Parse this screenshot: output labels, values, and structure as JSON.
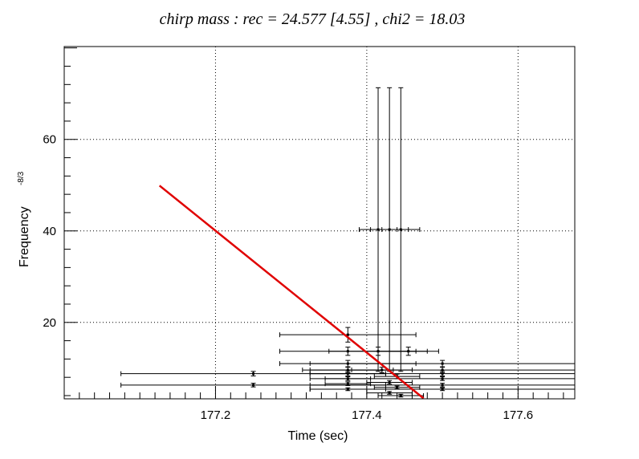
{
  "chart_data": {
    "type": "scatter",
    "title": "chirp mass : rec = 24.577 [4.55] , chi2 = 18.03",
    "xlabel": "Time (sec)",
    "ylabel": "Frequency",
    "ylabel_exponent": "-8/3",
    "xlim": [
      177.0,
      177.675
    ],
    "ylim": [
      3.3,
      80.3
    ],
    "x_ticks": [
      177.2,
      177.4,
      177.6
    ],
    "x_tick_labels": [
      "177.2",
      "177.4",
      "177.6"
    ],
    "y_ticks": [
      20,
      40,
      60
    ],
    "y_tick_labels": [
      "20",
      "40",
      "60"
    ],
    "grid": true,
    "fit_line": {
      "color": "#e00000",
      "x": [
        177.126,
        177.475
      ],
      "y": [
        49.9,
        3.4
      ]
    },
    "error_points": [
      {
        "x": 177.415,
        "y": 40.3,
        "xerr": 0.025,
        "yerr": 31.0
      },
      {
        "x": 177.43,
        "y": 40.3,
        "xerr": 0.025,
        "yerr": 31.0
      },
      {
        "x": 177.445,
        "y": 40.3,
        "xerr": 0.025,
        "yerr": 31.0
      },
      {
        "x": 177.375,
        "y": 17.3,
        "xerr": 0.09,
        "yerr": 1.6
      },
      {
        "x": 177.375,
        "y": 13.7,
        "xerr": 0.09,
        "yerr": 0.9
      },
      {
        "x": 177.415,
        "y": 13.7,
        "xerr": 0.065,
        "yerr": 0.9
      },
      {
        "x": 177.455,
        "y": 13.7,
        "xerr": 0.04,
        "yerr": 0.9
      },
      {
        "x": 177.375,
        "y": 11.0,
        "xerr": 0.09,
        "yerr": 0.7
      },
      {
        "x": 177.5,
        "y": 11.0,
        "xerr": 0.175,
        "yerr": 0.7
      },
      {
        "x": 177.375,
        "y": 9.6,
        "xerr": 0.06,
        "yerr": 0.6
      },
      {
        "x": 177.42,
        "y": 9.6,
        "xerr": 0.04,
        "yerr": 0.6
      },
      {
        "x": 177.5,
        "y": 9.6,
        "xerr": 0.175,
        "yerr": 0.6
      },
      {
        "x": 177.25,
        "y": 8.8,
        "xerr": 0.175,
        "yerr": 0.5
      },
      {
        "x": 177.375,
        "y": 8.8,
        "xerr": 0.05,
        "yerr": 0.5
      },
      {
        "x": 177.5,
        "y": 8.8,
        "xerr": 0.175,
        "yerr": 0.5
      },
      {
        "x": 177.44,
        "y": 8.2,
        "xerr": 0.03,
        "yerr": 0.5
      },
      {
        "x": 177.375,
        "y": 7.7,
        "xerr": 0.03,
        "yerr": 0.4
      },
      {
        "x": 177.5,
        "y": 7.7,
        "xerr": 0.175,
        "yerr": 0.4
      },
      {
        "x": 177.43,
        "y": 6.9,
        "xerr": 0.03,
        "yerr": 0.4
      },
      {
        "x": 177.375,
        "y": 6.6,
        "xerr": 0.03,
        "yerr": 0.4
      },
      {
        "x": 177.25,
        "y": 6.3,
        "xerr": 0.175,
        "yerr": 0.4
      },
      {
        "x": 177.5,
        "y": 6.3,
        "xerr": 0.175,
        "yerr": 0.4
      },
      {
        "x": 177.44,
        "y": 5.8,
        "xerr": 0.03,
        "yerr": 0.3
      },
      {
        "x": 177.375,
        "y": 5.4,
        "xerr": 0.05,
        "yerr": 0.3
      },
      {
        "x": 177.5,
        "y": 5.4,
        "xerr": 0.175,
        "yerr": 0.3
      },
      {
        "x": 177.43,
        "y": 4.6,
        "xerr": 0.03,
        "yerr": 0.3
      },
      {
        "x": 177.445,
        "y": 4.0,
        "xerr": 0.03,
        "yerr": 0.3
      }
    ]
  }
}
